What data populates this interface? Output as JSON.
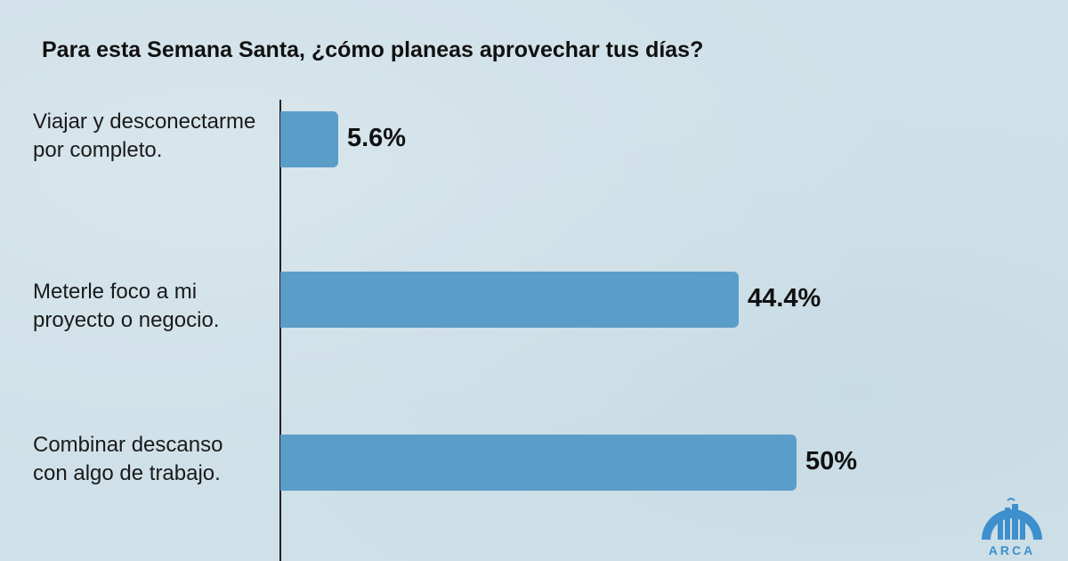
{
  "chart_data": {
    "type": "bar",
    "orientation": "horizontal",
    "title": "Para esta Semana Santa, ¿cómo planeas aprovechar tus días?",
    "categories": [
      "Viajar y desconectarme\npor completo.",
      "Meterle foco a mi\nproyecto o negocio.",
      "Combinar  descanso\ncon algo de trabajo."
    ],
    "values": [
      5.6,
      44.4,
      50
    ],
    "value_labels": [
      "5.6%",
      "44.4%",
      "50%"
    ],
    "xlim": [
      0,
      100
    ],
    "xlabel": "",
    "ylabel": "",
    "grid": false,
    "bar_color": "#5b9dc9"
  },
  "brand": {
    "logo_text": "ARCA",
    "color": "#3d90cd"
  },
  "colors": {
    "background": "#cfe0e8",
    "text": "#111111"
  }
}
